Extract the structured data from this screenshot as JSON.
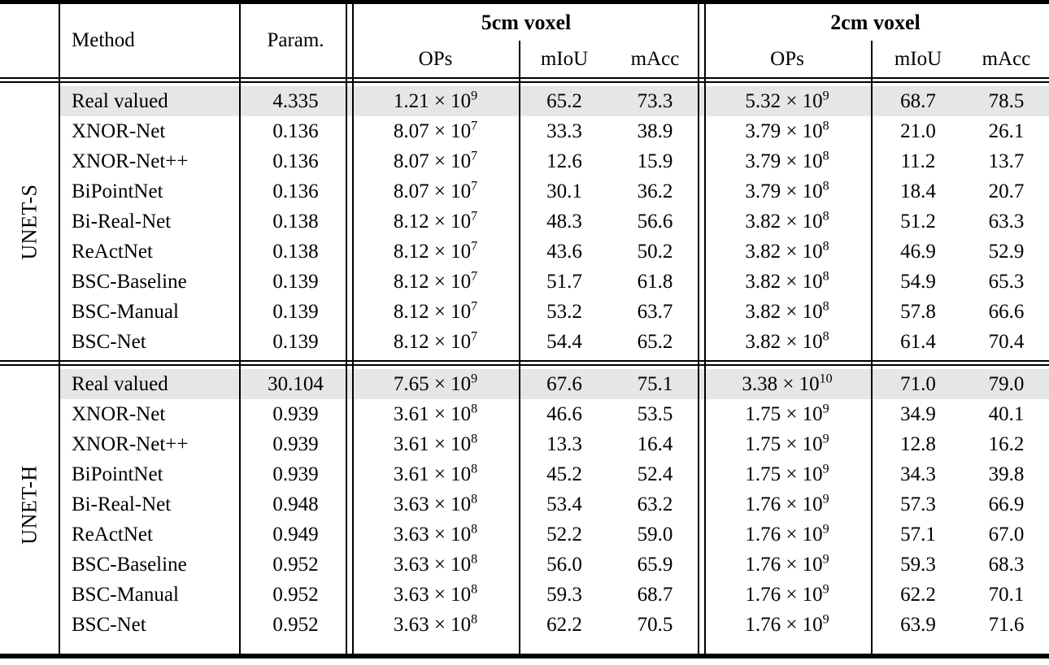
{
  "table": {
    "headers": {
      "method": "Method",
      "param": "Param.",
      "group_5cm": "5cm voxel",
      "group_2cm": "2cm voxel",
      "ops": "OPs",
      "miou": "mIoU",
      "macc": "mAcc"
    },
    "colors": {
      "highlight_row_bg": "#e6e6e6",
      "rule": "#000000",
      "text": "#000000",
      "background": "#ffffff"
    },
    "sections": [
      {
        "group": "UNET-S",
        "rows": [
          {
            "method": "Real valued",
            "param": "4.335",
            "ops5": "1.21 × 10^9",
            "miou5": "65.2",
            "macc5": "73.3",
            "ops2": "5.32 × 10^9",
            "miou2": "68.7",
            "macc2": "78.5",
            "highlight": true
          },
          {
            "method": "XNOR-Net",
            "param": "0.136",
            "ops5": "8.07 × 10^7",
            "miou5": "33.3",
            "macc5": "38.9",
            "ops2": "3.79 × 10^8",
            "miou2": "21.0",
            "macc2": "26.1",
            "highlight": false
          },
          {
            "method": "XNOR-Net++",
            "param": "0.136",
            "ops5": "8.07 × 10^7",
            "miou5": "12.6",
            "macc5": "15.9",
            "ops2": "3.79 × 10^8",
            "miou2": "11.2",
            "macc2": "13.7",
            "highlight": false
          },
          {
            "method": "BiPointNet",
            "param": "0.136",
            "ops5": "8.07 × 10^7",
            "miou5": "30.1",
            "macc5": "36.2",
            "ops2": "3.79 × 10^8",
            "miou2": "18.4",
            "macc2": "20.7",
            "highlight": false
          },
          {
            "method": "Bi-Real-Net",
            "param": "0.138",
            "ops5": "8.12 × 10^7",
            "miou5": "48.3",
            "macc5": "56.6",
            "ops2": "3.82 × 10^8",
            "miou2": "51.2",
            "macc2": "63.3",
            "highlight": false
          },
          {
            "method": "ReActNet",
            "param": "0.138",
            "ops5": "8.12 × 10^7",
            "miou5": "43.6",
            "macc5": "50.2",
            "ops2": "3.82 × 10^8",
            "miou2": "46.9",
            "macc2": "52.9",
            "highlight": false
          },
          {
            "method": "BSC-Baseline",
            "param": "0.139",
            "ops5": "8.12 × 10^7",
            "miou5": "51.7",
            "macc5": "61.8",
            "ops2": "3.82 × 10^8",
            "miou2": "54.9",
            "macc2": "65.3",
            "highlight": false
          },
          {
            "method": "BSC-Manual",
            "param": "0.139",
            "ops5": "8.12 × 10^7",
            "miou5": "53.2",
            "macc5": "63.7",
            "ops2": "3.82 × 10^8",
            "miou2": "57.8",
            "macc2": "66.6",
            "highlight": false
          },
          {
            "method": "BSC-Net",
            "param": "0.139",
            "ops5": "8.12 × 10^7",
            "miou5": "54.4",
            "macc5": "65.2",
            "ops2": "3.82 × 10^8",
            "miou2": "61.4",
            "macc2": "70.4",
            "highlight": false
          }
        ]
      },
      {
        "group": "UNET-H",
        "rows": [
          {
            "method": "Real valued",
            "param": "30.104",
            "ops5": "7.65 × 10^9",
            "miou5": "67.6",
            "macc5": "75.1",
            "ops2": "3.38 × 10^10",
            "miou2": "71.0",
            "macc2": "79.0",
            "highlight": true
          },
          {
            "method": "XNOR-Net",
            "param": "0.939",
            "ops5": "3.61 × 10^8",
            "miou5": "46.6",
            "macc5": "53.5",
            "ops2": "1.75 × 10^9",
            "miou2": "34.9",
            "macc2": "40.1",
            "highlight": false
          },
          {
            "method": "XNOR-Net++",
            "param": "0.939",
            "ops5": "3.61 × 10^8",
            "miou5": "13.3",
            "macc5": "16.4",
            "ops2": "1.75 × 10^9",
            "miou2": "12.8",
            "macc2": "16.2",
            "highlight": false
          },
          {
            "method": "BiPointNet",
            "param": "0.939",
            "ops5": "3.61 × 10^8",
            "miou5": "45.2",
            "macc5": "52.4",
            "ops2": "1.75 × 10^9",
            "miou2": "34.3",
            "macc2": "39.8",
            "highlight": false
          },
          {
            "method": "Bi-Real-Net",
            "param": "0.948",
            "ops5": "3.63 × 10^8",
            "miou5": "53.4",
            "macc5": "63.2",
            "ops2": "1.76 × 10^9",
            "miou2": "57.3",
            "macc2": "66.9",
            "highlight": false
          },
          {
            "method": "ReActNet",
            "param": "0.949",
            "ops5": "3.63 × 10^8",
            "miou5": "52.2",
            "macc5": "59.0",
            "ops2": "1.76 × 10^9",
            "miou2": "57.1",
            "macc2": "67.0",
            "highlight": false
          },
          {
            "method": "BSC-Baseline",
            "param": "0.952",
            "ops5": "3.63 × 10^8",
            "miou5": "56.0",
            "macc5": "65.9",
            "ops2": "1.76 × 10^9",
            "miou2": "59.3",
            "macc2": "68.3",
            "highlight": false
          },
          {
            "method": "BSC-Manual",
            "param": "0.952",
            "ops5": "3.63 × 10^8",
            "miou5": "59.3",
            "macc5": "68.7",
            "ops2": "1.76 × 10^9",
            "miou2": "62.2",
            "macc2": "70.1",
            "highlight": false
          },
          {
            "method": "BSC-Net",
            "param": "0.952",
            "ops5": "3.63 × 10^8",
            "miou5": "62.2",
            "macc5": "70.5",
            "ops2": "1.76 × 10^9",
            "miou2": "63.9",
            "macc2": "71.6",
            "highlight": false
          }
        ]
      }
    ]
  }
}
